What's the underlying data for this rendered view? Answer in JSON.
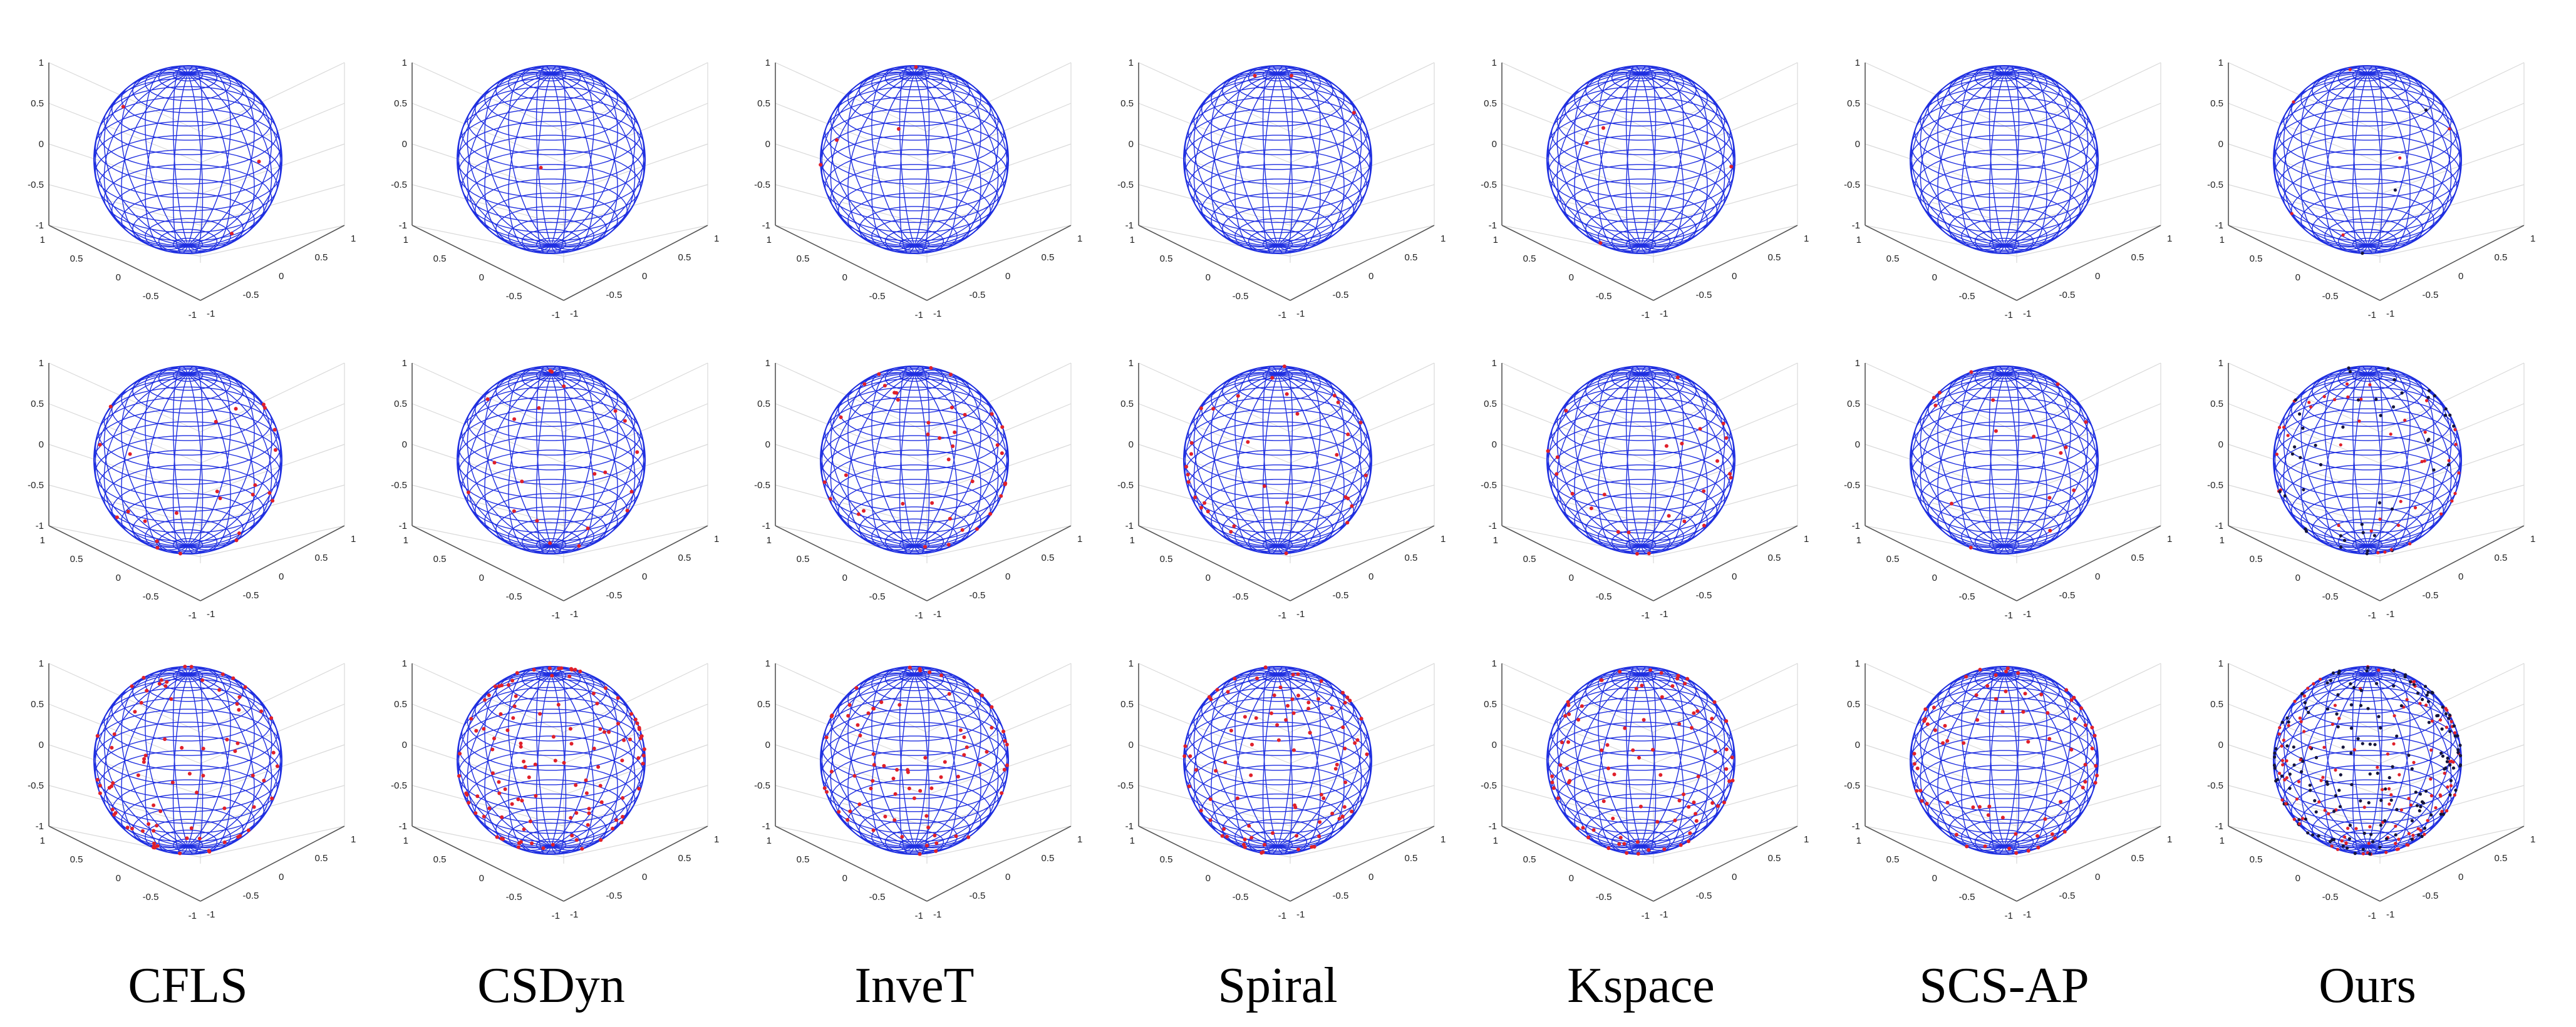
{
  "methods": [
    "CFLS",
    "CSDyn",
    "InveT",
    "Spiral",
    "Kspace",
    "SCS-AP",
    "Ours"
  ],
  "axes": {
    "z_ticks": [
      "1",
      "0.5",
      "0",
      "-0.5",
      "-1"
    ],
    "x_ticks": [
      "1",
      "0.5",
      "0",
      "-0.5",
      "-1"
    ],
    "y_ticks": [
      "-1",
      "-0.5",
      "0",
      "0.5",
      "1"
    ]
  },
  "colors": {
    "sphere_mesh": "#1f2fe0",
    "samples_red": "#e0202a",
    "samples_dark": "#14143c",
    "axis": "#555555",
    "grid": "#d9d9d9"
  },
  "rows": [
    {
      "row": 1,
      "sample_counts": [
        8,
        3,
        6,
        4,
        7,
        0,
        16
      ]
    },
    {
      "row": 2,
      "sample_counts": [
        40,
        45,
        60,
        55,
        50,
        35,
        140
      ]
    },
    {
      "row": 3,
      "sample_counts": [
        160,
        180,
        130,
        170,
        150,
        140,
        520
      ]
    }
  ]
}
